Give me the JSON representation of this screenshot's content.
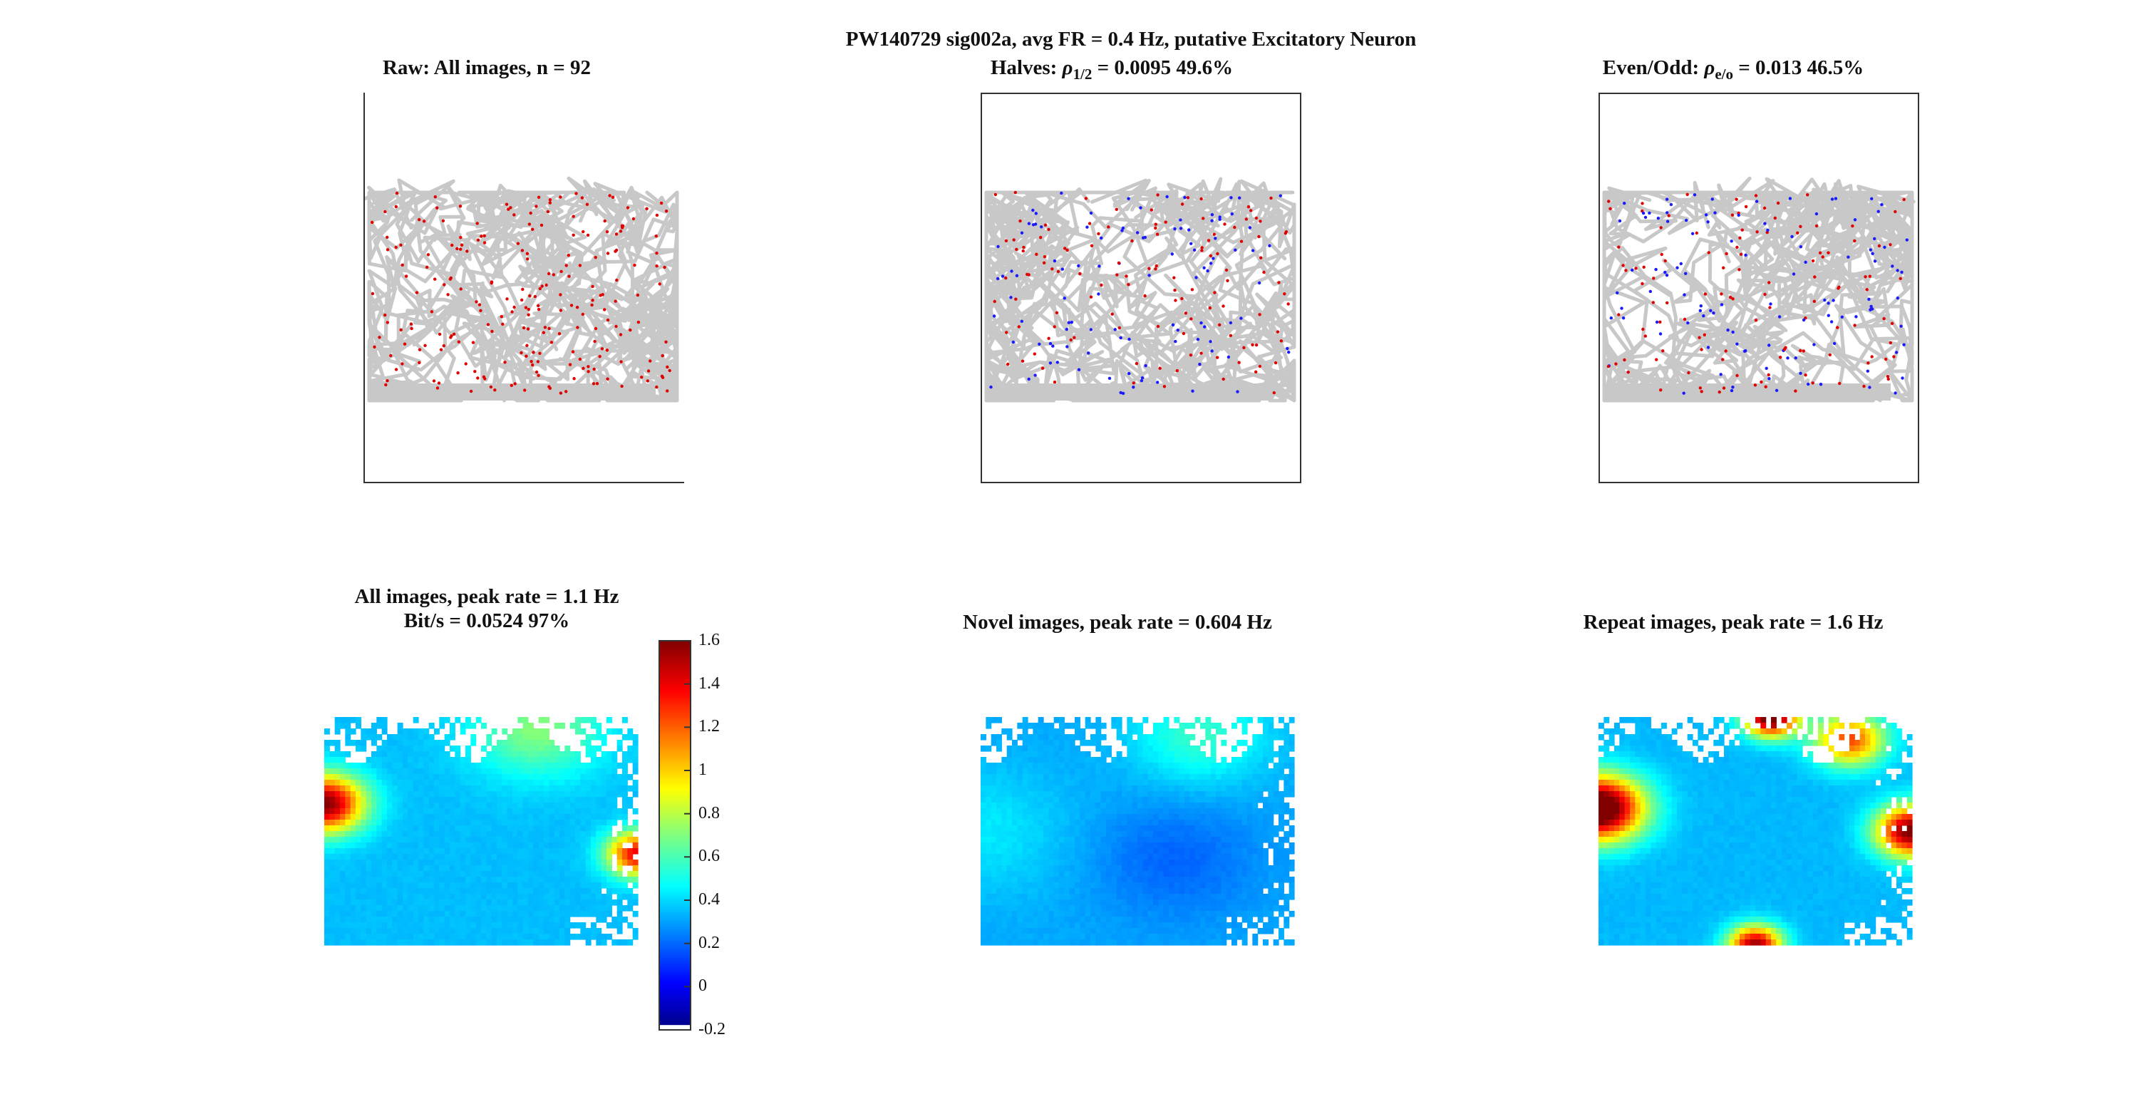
{
  "figure": {
    "suptitle": "PW140729  sig002a, avg FR = 0.4 Hz, putative Excitatory Neuron"
  },
  "panels": {
    "raw": {
      "title": "Raw: All images, n = 92"
    },
    "halves": {
      "prefix": "Halves: ",
      "rho": "ρ",
      "rho_sub": "1/2",
      "rest": " = 0.0095 49.6%"
    },
    "evenodd": {
      "prefix": "Even/Odd: ",
      "rho": "ρ",
      "rho_sub": "e/o",
      "rest": " = 0.013 46.5%"
    },
    "all": {
      "title_line1": "All images, peak rate = 1.1 Hz",
      "title_line2": "Bit/s = 0.0524 97%"
    },
    "novel": {
      "title": "Novel images, peak rate = 0.604 Hz"
    },
    "repeat": {
      "title": "Repeat images, peak rate = 1.6 Hz"
    }
  },
  "colors": {
    "trajectory": "#c8c8c8",
    "spike_first": "#e00000",
    "spike_second": "#1a1aff"
  },
  "chart_data": [
    {
      "type": "scatter",
      "panel": "raw",
      "title": "Raw: All images, n = 92",
      "series": [
        {
          "name": "",
          "color": "#e00000"
        }
      ]
    },
    {
      "type": "scatter",
      "panel": "halves",
      "title": "Halves: ρ1/2 = 0.0095 49.6%",
      "series": [
        {
          "color": "#e00000"
        },
        {
          "color": "#1a1aff"
        }
      ]
    },
    {
      "type": "scatter",
      "panel": "evenodd",
      "title": "Even/Odd: ρe/o = 0.013 46.5%",
      "series": [
        {
          "color": "#e00000"
        },
        {
          "color": "#1a1aff"
        }
      ]
    },
    {
      "type": "heatmap",
      "panel": "all",
      "title": "All images, peak rate = 1.1 Hz",
      "peak": 1.1,
      "blobs": [
        {
          "cx": 0.0,
          "cy": 0.38,
          "amp": 1.25,
          "s": 0.09
        },
        {
          "cx": 1.0,
          "cy": 0.6,
          "amp": 1.05,
          "s": 0.07
        },
        {
          "cx": 0.68,
          "cy": 0.05,
          "amp": 0.35,
          "s": 0.15
        }
      ],
      "base": 0.36
    },
    {
      "type": "heatmap",
      "panel": "novel",
      "title": "Novel images, peak rate = 0.604 Hz",
      "peak": 0.604,
      "blobs": [
        {
          "cx": 0.0,
          "cy": 0.5,
          "amp": 0.12,
          "s": 0.2
        },
        {
          "cx": 0.7,
          "cy": 0.08,
          "amp": 0.25,
          "s": 0.15
        },
        {
          "cx": 0.62,
          "cy": 0.63,
          "amp": -0.12,
          "s": 0.18
        }
      ],
      "base": 0.32
    },
    {
      "type": "heatmap",
      "panel": "repeat",
      "title": "Repeat images, peak rate = 1.6 Hz",
      "peak": 1.6,
      "blobs": [
        {
          "cx": 0.0,
          "cy": 0.4,
          "amp": 1.5,
          "s": 0.1
        },
        {
          "cx": 1.0,
          "cy": 0.5,
          "amp": 1.3,
          "s": 0.08
        },
        {
          "cx": 0.55,
          "cy": 0.0,
          "amp": 1.4,
          "s": 0.06
        },
        {
          "cx": 0.5,
          "cy": 1.0,
          "amp": 1.2,
          "s": 0.06
        },
        {
          "cx": 0.8,
          "cy": 0.1,
          "amp": 0.9,
          "s": 0.08
        }
      ],
      "base": 0.35
    }
  ],
  "colorbar": {
    "ticks": [
      "1.6",
      "1.4",
      "1.2",
      "1",
      "0.8",
      "0.6",
      "0.4",
      "0.2",
      "0",
      "-0.2"
    ],
    "min": -0.2,
    "max": 1.6,
    "colormap": "jet"
  }
}
